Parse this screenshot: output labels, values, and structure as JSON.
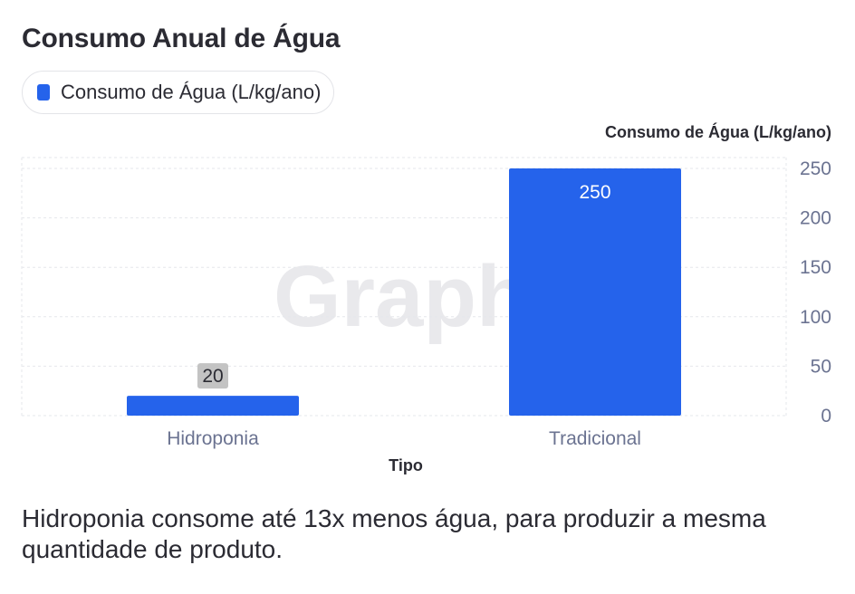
{
  "title": "Consumo Anual de Água",
  "legend": {
    "label": "Consumo de Água (L/kg/ano)"
  },
  "watermark": "Graphy",
  "note": "Hidroponia consome até 13x menos água, para produzir a mesma quantidade de produto.",
  "colors": {
    "bar": "#2563eb",
    "grid": "#e6e7eb",
    "label_bg": "#c3c3c3"
  },
  "chart_data": {
    "type": "bar",
    "title": "Consumo Anual de Água",
    "categories": [
      "Hidroponia",
      "Tradicional"
    ],
    "series": [
      {
        "name": "Consumo de Água (L/kg/ano)",
        "values": [
          20,
          250
        ]
      }
    ],
    "xlabel": "Tipo",
    "ylabel": "Consumo de Água (L/kg/ano)",
    "ylim": [
      0,
      250
    ],
    "yticks": [
      0,
      50,
      100,
      150,
      200,
      250
    ],
    "y_axis_side": "right",
    "grid": true,
    "legend_position": "top-left",
    "data_labels": [
      "20",
      "250"
    ]
  }
}
